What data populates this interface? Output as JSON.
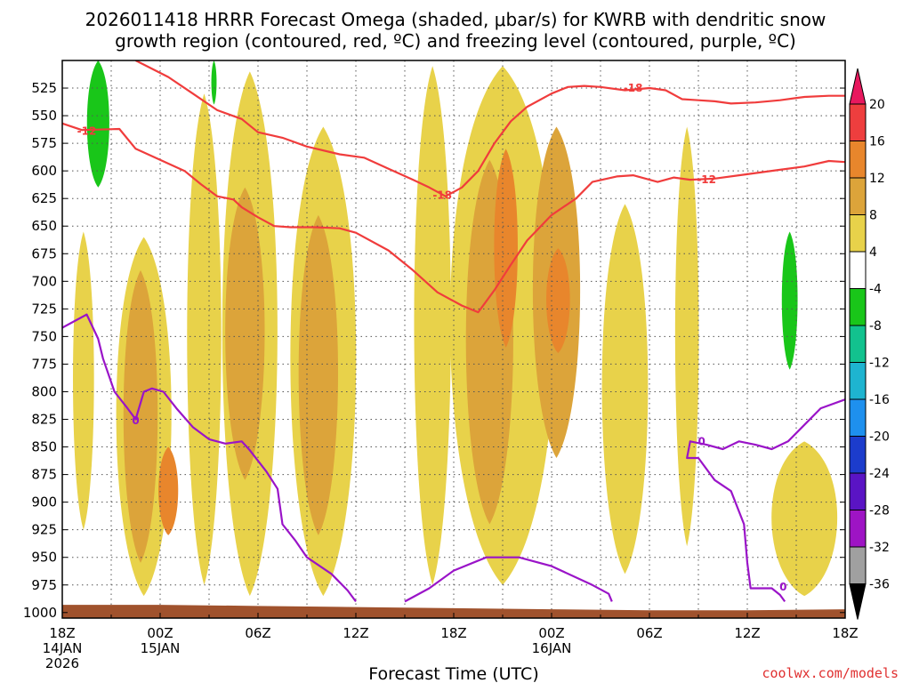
{
  "chart_data": {
    "type": "time-height",
    "title_line1": "2026011418 HRRR Forecast Omega (shaded, μbar/s) for KWRB with dendritic snow",
    "title_line2": "growth region (contoured, red, ºC) and freezing level (contoured, purple, ºC)",
    "xlabel": "Forecast Time (UTC)",
    "credit": "coolwx.com/models",
    "xlim_hours": [
      0,
      48
    ],
    "x_ticks": [
      {
        "hour": 0,
        "label": "18Z",
        "sub1": "14JAN",
        "sub2": "2026"
      },
      {
        "hour": 6,
        "label": "00Z",
        "sub1": "15JAN",
        "sub2": ""
      },
      {
        "hour": 12,
        "label": "06Z",
        "sub1": "",
        "sub2": ""
      },
      {
        "hour": 18,
        "label": "12Z",
        "sub1": "",
        "sub2": ""
      },
      {
        "hour": 24,
        "label": "18Z",
        "sub1": "",
        "sub2": ""
      },
      {
        "hour": 30,
        "label": "00Z",
        "sub1": "16JAN",
        "sub2": ""
      },
      {
        "hour": 36,
        "label": "06Z",
        "sub1": "",
        "sub2": ""
      },
      {
        "hour": 42,
        "label": "12Z",
        "sub1": "",
        "sub2": ""
      },
      {
        "hour": 48,
        "label": "18Z",
        "sub1": "",
        "sub2": ""
      }
    ],
    "ylim_hpa": [
      1005,
      500
    ],
    "y_ticks": [
      "525",
      "550",
      "575",
      "600",
      "625",
      "650",
      "675",
      "700",
      "725",
      "750",
      "775",
      "800",
      "825",
      "850",
      "875",
      "900",
      "925",
      "950",
      "975",
      "1000"
    ],
    "colorbar": {
      "labels": [
        "20",
        "16",
        "12",
        "8",
        "4",
        "-4",
        "-8",
        "-12",
        "-16",
        "-20",
        "-24",
        "-28",
        "-32",
        "-36"
      ],
      "colors": [
        "#e8185e",
        "#ee3e3e",
        "#e8862c",
        "#dca43a",
        "#e8d24a",
        "#ffffff",
        "#19c619",
        "#12c28e",
        "#1eb4d0",
        "#1e90ee",
        "#1c3ccc",
        "#5a14c4",
        "#9e14c4",
        "#a0a0a0",
        "#000000"
      ]
    },
    "shading": {
      "weak_rise_4_8": [
        {
          "hour": 1.3,
          "width": 1.6,
          "top": 655,
          "bottom": 925
        },
        {
          "hour": 5.0,
          "width": 4.2,
          "top": 660,
          "bottom": 985
        },
        {
          "hour": 8.7,
          "width": 2.6,
          "top": 530,
          "bottom": 975
        },
        {
          "hour": 11.5,
          "width": 4.2,
          "top": 510,
          "bottom": 985
        },
        {
          "hour": 16.0,
          "width": 5.0,
          "top": 560,
          "bottom": 985
        },
        {
          "hour": 22.7,
          "width": 2.8,
          "top": 505,
          "bottom": 975
        },
        {
          "hour": 27.0,
          "width": 8.0,
          "top": 505,
          "bottom": 975
        },
        {
          "hour": 34.5,
          "width": 3.5,
          "top": 630,
          "bottom": 965
        },
        {
          "hour": 38.3,
          "width": 1.8,
          "top": 560,
          "bottom": 940
        },
        {
          "hour": 45.5,
          "width": 5.0,
          "top": 845,
          "bottom": 985
        }
      ],
      "moderate_rise_8_12": [
        {
          "hour": 4.8,
          "width": 2.6,
          "top": 690,
          "bottom": 955
        },
        {
          "hour": 11.2,
          "width": 3.0,
          "top": 615,
          "bottom": 880
        },
        {
          "hour": 15.7,
          "width": 3.0,
          "top": 640,
          "bottom": 930
        },
        {
          "hour": 26.2,
          "width": 3.6,
          "top": 590,
          "bottom": 920
        },
        {
          "hour": 30.3,
          "width": 3.6,
          "top": 560,
          "bottom": 860
        }
      ],
      "strong_rise_12_16": [
        {
          "hour": 6.5,
          "width": 1.5,
          "top": 850,
          "bottom": 930
        },
        {
          "hour": 27.2,
          "width": 1.8,
          "top": 580,
          "bottom": 760
        },
        {
          "hour": 30.4,
          "width": 1.8,
          "top": 670,
          "bottom": 765
        }
      ],
      "sinking_green": [
        {
          "hour": 2.2,
          "width": 1.7,
          "top": 500,
          "bottom": 615
        },
        {
          "hour": 9.3,
          "width": 0.4,
          "top": 500,
          "bottom": 540
        },
        {
          "hour": 44.6,
          "width": 1.2,
          "top": 655,
          "bottom": 780
        }
      ]
    },
    "contours": {
      "dendritic_minus12": [
        [
          0,
          557
        ],
        [
          1.2,
          563
        ],
        [
          3.5,
          562
        ],
        [
          4.5,
          580
        ],
        [
          6,
          590
        ],
        [
          7.5,
          600
        ],
        [
          8.5,
          612
        ],
        [
          9.5,
          623
        ],
        [
          10.5,
          626
        ],
        [
          11,
          633
        ],
        [
          12,
          642
        ],
        [
          13,
          650
        ],
        [
          14,
          651
        ],
        [
          15.5,
          651
        ],
        [
          17,
          652
        ],
        [
          18,
          656
        ],
        [
          20,
          672
        ],
        [
          21.5,
          690
        ],
        [
          23,
          710
        ],
        [
          24.5,
          722
        ],
        [
          25.5,
          728
        ],
        [
          26.5,
          708
        ],
        [
          27.5,
          685
        ],
        [
          28.5,
          663
        ],
        [
          30,
          640
        ],
        [
          31.5,
          625
        ],
        [
          32.5,
          610
        ],
        [
          34,
          605
        ],
        [
          35,
          604
        ],
        [
          36.5,
          610
        ],
        [
          37.5,
          606
        ],
        [
          38.5,
          608
        ],
        [
          40,
          607
        ],
        [
          42,
          603
        ],
        [
          44,
          599
        ],
        [
          45.5,
          596
        ],
        [
          47,
          591
        ],
        [
          48,
          592
        ]
      ],
      "dendritic_minus18": [
        [
          4.5,
          500
        ],
        [
          6.5,
          515
        ],
        [
          8,
          530
        ],
        [
          9.5,
          545
        ],
        [
          11,
          553
        ],
        [
          12,
          565
        ],
        [
          13.5,
          570
        ],
        [
          15,
          578
        ],
        [
          17,
          585
        ],
        [
          18.5,
          588
        ],
        [
          20,
          598
        ],
        [
          21.5,
          608
        ],
        [
          22.5,
          615
        ],
        [
          23.5,
          623
        ],
        [
          24.5,
          615
        ],
        [
          25.5,
          600
        ],
        [
          26.5,
          575
        ],
        [
          27.5,
          555
        ],
        [
          28.5,
          542
        ],
        [
          30,
          530
        ],
        [
          31,
          524
        ],
        [
          32,
          523
        ],
        [
          33,
          524
        ],
        [
          34.5,
          527
        ],
        [
          36,
          525
        ],
        [
          37,
          527
        ],
        [
          38,
          535
        ],
        [
          39,
          536
        ],
        [
          40,
          537
        ],
        [
          41,
          539
        ],
        [
          42.5,
          538
        ],
        [
          44,
          536
        ],
        [
          45.5,
          533
        ],
        [
          47,
          532
        ],
        [
          48,
          532
        ]
      ],
      "freezing_level_0C_left": [
        [
          0,
          742
        ],
        [
          1.5,
          730
        ],
        [
          2.2,
          752
        ],
        [
          2.5,
          770
        ],
        [
          3.2,
          800
        ],
        [
          4,
          815
        ],
        [
          4.5,
          825
        ],
        [
          5,
          800
        ],
        [
          5.5,
          797
        ],
        [
          6.2,
          800
        ],
        [
          7,
          815
        ],
        [
          8,
          832
        ],
        [
          9,
          843
        ],
        [
          10,
          847
        ],
        [
          11,
          845
        ],
        [
          11.5,
          853
        ],
        [
          12.5,
          872
        ],
        [
          13.2,
          888
        ],
        [
          13.5,
          920
        ],
        [
          14.3,
          935
        ],
        [
          15,
          950
        ],
        [
          16.5,
          965
        ],
        [
          17.5,
          980
        ],
        [
          18,
          990
        ]
      ],
      "freezing_level_0C_bottom": [
        [
          21,
          990
        ],
        [
          22.5,
          978
        ],
        [
          24,
          962
        ],
        [
          26,
          950
        ],
        [
          28,
          950
        ],
        [
          30,
          958
        ],
        [
          32.5,
          975
        ],
        [
          33.5,
          983
        ],
        [
          33.7,
          990
        ]
      ],
      "freezing_level_0C_right": [
        [
          48,
          807
        ],
        [
          46.5,
          815
        ],
        [
          45.5,
          830
        ],
        [
          44.5,
          845
        ],
        [
          43.5,
          852
        ],
        [
          42.5,
          848
        ],
        [
          41.5,
          845
        ],
        [
          40.5,
          852
        ],
        [
          39.5,
          848
        ],
        [
          38.5,
          845
        ],
        [
          38.3,
          860
        ],
        [
          39,
          860
        ],
        [
          40,
          880
        ],
        [
          41,
          890
        ],
        [
          41.8,
          920
        ],
        [
          42,
          955
        ],
        [
          42.2,
          978
        ],
        [
          43.5,
          978
        ],
        [
          44,
          984
        ],
        [
          44.3,
          990
        ]
      ]
    },
    "contour_labels": [
      {
        "text": "-12",
        "hour": 1.5,
        "hpa": 564,
        "kind": "red"
      },
      {
        "text": "-18",
        "hour": 35.0,
        "hpa": 525,
        "kind": "red"
      },
      {
        "text": "-18",
        "hour": 23.3,
        "hpa": 622,
        "kind": "red"
      },
      {
        "text": "-12",
        "hour": 39.5,
        "hpa": 608,
        "kind": "red"
      },
      {
        "text": "0",
        "hour": 4.5,
        "hpa": 826,
        "kind": "purple"
      },
      {
        "text": "0",
        "hour": 39.2,
        "hpa": 845,
        "kind": "purple"
      },
      {
        "text": "0",
        "hour": 44.2,
        "hpa": 977,
        "kind": "purple"
      }
    ],
    "terrain": {
      "surface_hpa": [
        [
          0,
          993
        ],
        [
          6,
          993
        ],
        [
          12,
          994
        ],
        [
          18,
          995
        ],
        [
          24,
          996
        ],
        [
          30,
          997
        ],
        [
          36,
          998
        ],
        [
          42,
          998
        ],
        [
          48,
          997
        ]
      ]
    }
  }
}
